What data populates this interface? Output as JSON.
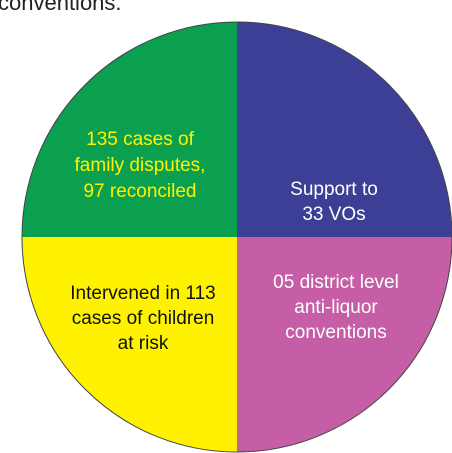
{
  "header": {
    "text": "conventions."
  },
  "quadrants": [
    {
      "lines": [
        "135 cases of",
        "family disputes,",
        "97 reconciled"
      ]
    },
    {
      "lines": [
        "Support to",
        "33 VOs"
      ]
    },
    {
      "lines": [
        "Intervened in 113",
        "cases of children",
        "at risk"
      ]
    },
    {
      "lines": [
        "05 district level",
        "anti-liquor",
        "conventions"
      ]
    }
  ]
}
